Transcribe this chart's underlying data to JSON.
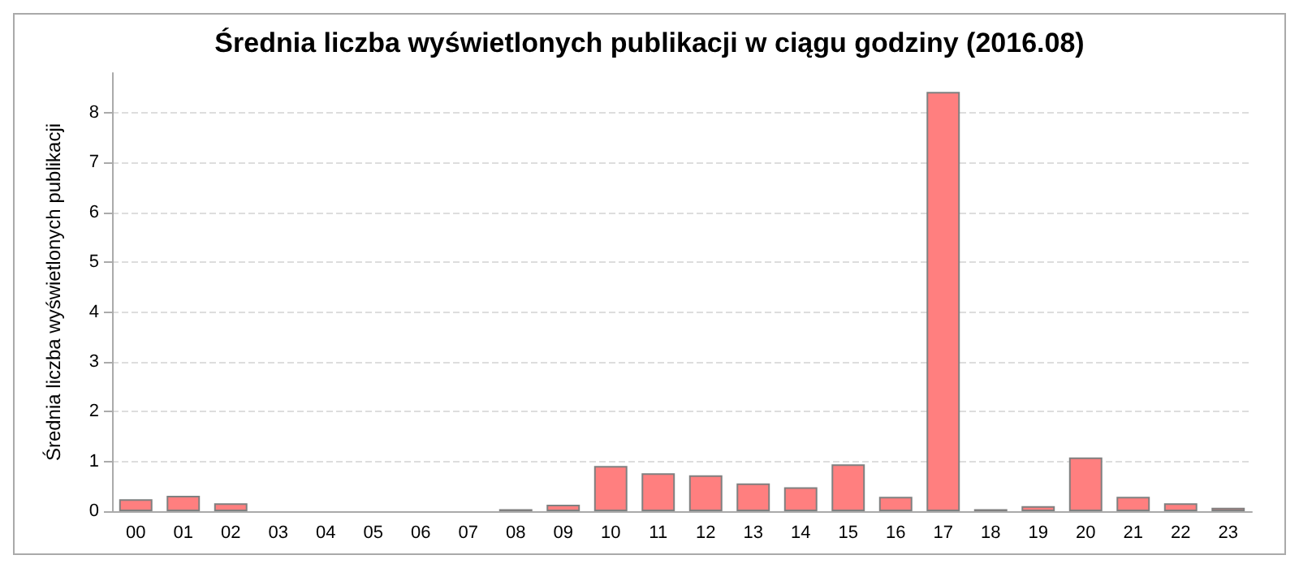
{
  "chart_data": {
    "type": "bar",
    "title": "Średnia liczba wyświetlonych publikacji w ciągu godziny (2016.08)",
    "ylabel": "Średnia liczba wyświetlonych publikacji",
    "categories": [
      "00",
      "01",
      "02",
      "03",
      "04",
      "05",
      "06",
      "07",
      "08",
      "09",
      "10",
      "11",
      "12",
      "13",
      "14",
      "15",
      "16",
      "17",
      "18",
      "19",
      "20",
      "21",
      "22",
      "23"
    ],
    "values": [
      0.24,
      0.31,
      0.16,
      0,
      0,
      0,
      0,
      0,
      0.04,
      0.13,
      0.91,
      0.76,
      0.72,
      0.56,
      0.48,
      0.94,
      0.29,
      8.42,
      0.04,
      0.1,
      1.08,
      0.29,
      0.16,
      0.07
    ],
    "color": "#ff7f7f",
    "ylim": [
      0,
      8.8
    ],
    "yticks": [
      0,
      1,
      2,
      3,
      4,
      5,
      6,
      7,
      8
    ],
    "grid": "y"
  }
}
